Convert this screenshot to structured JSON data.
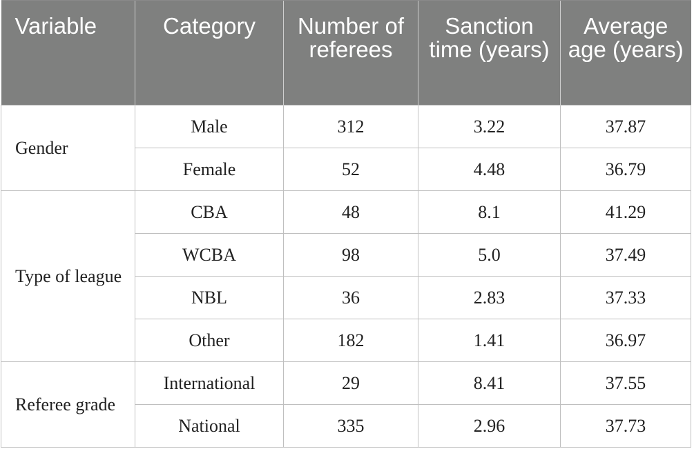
{
  "headers": [
    "Variable",
    "Category",
    "Number of referees",
    "Sanction time (years)",
    "Average age (years)"
  ],
  "groups": [
    {
      "variable": "Gender",
      "rows": [
        {
          "category": "Male",
          "number": "312",
          "sanction": "3.22",
          "age": "37.87"
        },
        {
          "category": "Female",
          "number": "52",
          "sanction": "4.48",
          "age": "36.79"
        }
      ]
    },
    {
      "variable": "Type of league",
      "rows": [
        {
          "category": "CBA",
          "number": "48",
          "sanction": "8.1",
          "age": "41.29"
        },
        {
          "category": "WCBA",
          "number": "98",
          "sanction": "5.0",
          "age": "37.49"
        },
        {
          "category": "NBL",
          "number": "36",
          "sanction": "2.83",
          "age": "37.33"
        },
        {
          "category": "Other",
          "number": "182",
          "sanction": "1.41",
          "age": "36.97"
        }
      ]
    },
    {
      "variable": "Referee grade",
      "rows": [
        {
          "category": "International",
          "number": "29",
          "sanction": "8.41",
          "age": "37.55"
        },
        {
          "category": "National",
          "number": "335",
          "sanction": "2.96",
          "age": "37.73"
        }
      ]
    }
  ]
}
